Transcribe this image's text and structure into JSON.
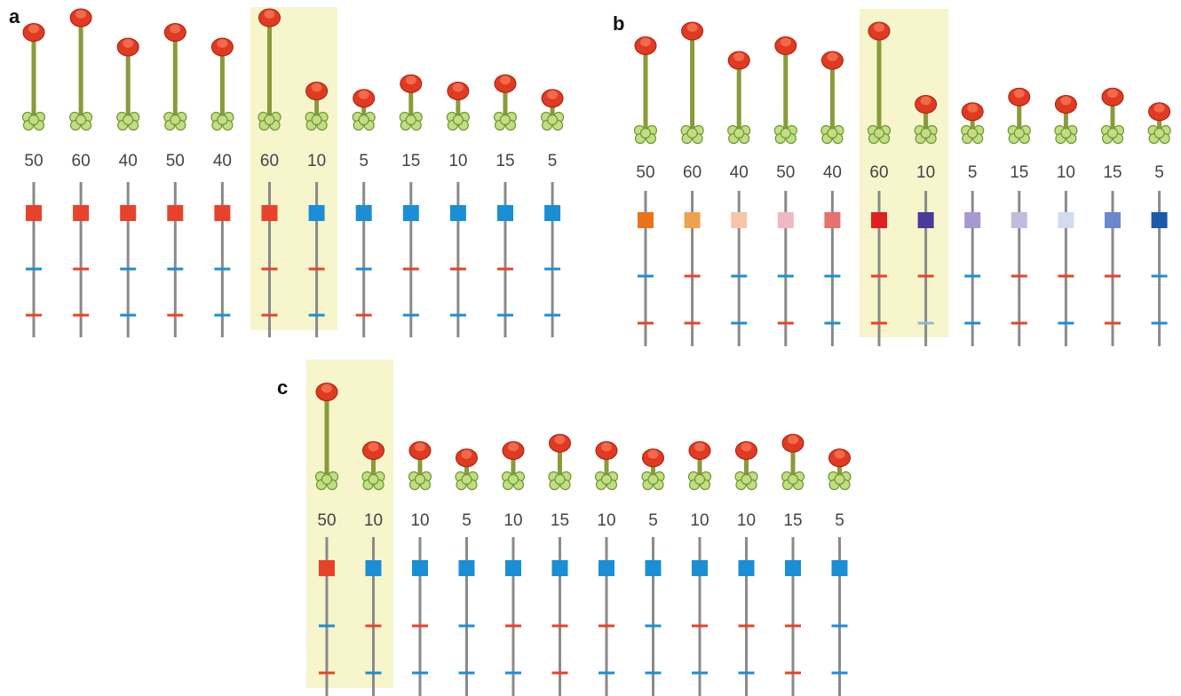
{
  "panels": [
    {
      "label": "a",
      "values": [
        50,
        60,
        40,
        50,
        40,
        60,
        10,
        5,
        15,
        10,
        15,
        5
      ],
      "square_colors": [
        "#e8432a",
        "#e8432a",
        "#e8432a",
        "#e8432a",
        "#e8432a",
        "#e8432a",
        "#1a8fd6",
        "#1a8fd6",
        "#1a8fd6",
        "#1a8fd6",
        "#1a8fd6",
        "#1a8fd6"
      ],
      "marker1_colors": [
        "#1a8fd6",
        "#e8432a",
        "#1a8fd6",
        "#1a8fd6",
        "#1a8fd6",
        "#e8432a",
        "#e8432a",
        "#1a8fd6",
        "#e8432a",
        "#e8432a",
        "#e8432a",
        "#1a8fd6"
      ],
      "marker2_colors": [
        "#e8432a",
        "#e8432a",
        "#1a8fd6",
        "#e8432a",
        "#1a8fd6",
        "#e8432a",
        "#1a8fd6",
        "#e8432a",
        "#1a8fd6",
        "#1a8fd6",
        "#1a8fd6",
        "#1a8fd6"
      ]
    },
    {
      "label": "b",
      "values": [
        50,
        60,
        40,
        50,
        40,
        60,
        10,
        5,
        15,
        10,
        15,
        5
      ],
      "square_colors": [
        "#e8731a",
        "#f0a050",
        "#f6c6a8",
        "#f0b8c0",
        "#e8706f",
        "#e02020",
        "#4a3a9a",
        "#a898d0",
        "#c0bce0",
        "#d0dcf0",
        "#6a88cc",
        "#1a5aa8"
      ],
      "marker1_colors": [
        "#1a8fd6",
        "#e8432a",
        "#1a8fd6",
        "#1a8fd6",
        "#1a8fd6",
        "#e8432a",
        "#e8432a",
        "#1a8fd6",
        "#e8432a",
        "#e8432a",
        "#e8432a",
        "#1a8fd6"
      ],
      "marker2_colors": [
        "#e8432a",
        "#e8432a",
        "#1a8fd6",
        "#e8432a",
        "#1a8fd6",
        "#e8432a",
        "#8ab8e0",
        "#1a8fd6",
        "#e8432a",
        "#1a8fd6",
        "#e8432a",
        "#1a8fd6"
      ]
    },
    {
      "label": "c",
      "values": [
        50,
        10,
        10,
        5,
        10,
        15,
        10,
        5,
        10,
        10,
        15,
        5
      ],
      "square_colors": [
        "#e8432a",
        "#1a8fd6",
        "#1a8fd6",
        "#1a8fd6",
        "#1a8fd6",
        "#1a8fd6",
        "#1a8fd6",
        "#1a8fd6",
        "#1a8fd6",
        "#1a8fd6",
        "#1a8fd6",
        "#1a8fd6"
      ],
      "marker1_colors": [
        "#1a8fd6",
        "#e8432a",
        "#e8432a",
        "#1a8fd6",
        "#e8432a",
        "#e8432a",
        "#e8432a",
        "#1a8fd6",
        "#e8432a",
        "#e8432a",
        "#e8432a",
        "#1a8fd6"
      ],
      "marker2_colors": [
        "#e8432a",
        "#1a8fd6",
        "#1a8fd6",
        "#1a8fd6",
        "#1a8fd6",
        "#e8432a",
        "#1a8fd6",
        "#1a8fd6",
        "#1a8fd6",
        "#1a8fd6",
        "#e8432a",
        "#1a8fd6"
      ]
    }
  ]
}
